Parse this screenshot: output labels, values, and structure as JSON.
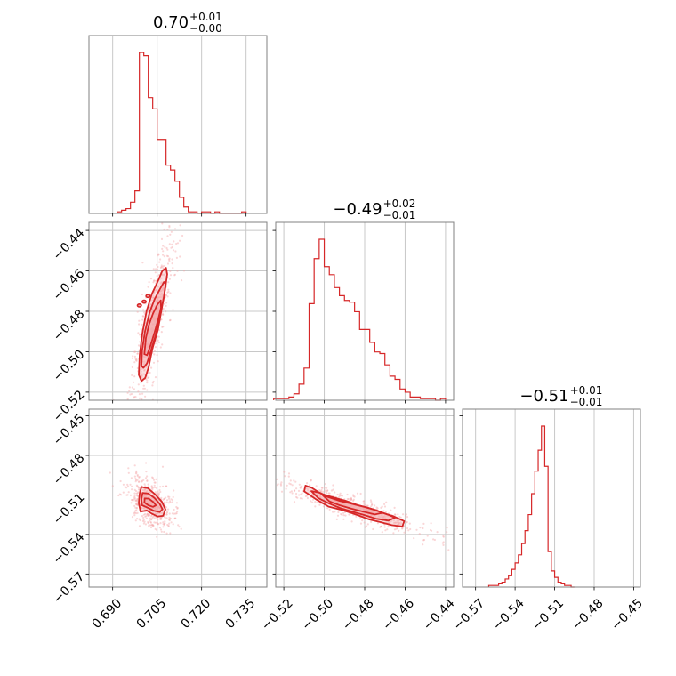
{
  "chart_data": {
    "type": "corner",
    "grid": true,
    "colors": {
      "line": "#d62728",
      "fill": "#f4a6a8",
      "frame": "#808080",
      "grid": "#c8c8c8"
    },
    "parameters": [
      {
        "title_main": "0.70",
        "title_plus": "+0.01",
        "title_minus": "−0.00",
        "range": [
          0.682,
          0.742
        ]
      },
      {
        "title_main": "−0.49",
        "title_plus": "+0.02",
        "title_minus": "−0.01",
        "range": [
          -0.524,
          -0.436
        ]
      },
      {
        "title_main": "−0.51",
        "title_plus": "+0.01",
        "title_minus": "−0.01",
        "range": [
          -0.5799,
          -0.4449
        ]
      }
    ],
    "x_ticks": [
      {
        "values": [
          0.69,
          0.705,
          0.72,
          0.735
        ],
        "labels": [
          "0.690",
          "0.705",
          "0.720",
          "0.735"
        ]
      },
      {
        "values": [
          -0.52,
          -0.5,
          -0.48,
          -0.46,
          -0.44
        ],
        "labels": [
          "−0.52",
          "−0.50",
          "−0.48",
          "−0.46",
          "−0.44"
        ]
      },
      {
        "values": [
          -0.57,
          -0.54,
          -0.51,
          -0.48,
          -0.45
        ],
        "labels": [
          "−0.57",
          "−0.54",
          "−0.51",
          "−0.48",
          "−0.45"
        ]
      }
    ],
    "y_ticks": [
      null,
      {
        "values": [
          -0.44,
          -0.46,
          -0.48,
          -0.5,
          -0.52
        ],
        "labels": [
          "−0.44",
          "−0.46",
          "−0.48",
          "−0.50",
          "−0.52"
        ]
      },
      {
        "values": [
          -0.45,
          -0.48,
          -0.51,
          -0.54,
          -0.57
        ],
        "labels": [
          "−0.45",
          "−0.48",
          "−0.51",
          "−0.54",
          "−0.57"
        ]
      }
    ],
    "histograms": [
      {
        "bin_width": 0.0015,
        "bins": [
          [
            0.6915,
            1
          ],
          [
            0.693,
            2
          ],
          [
            0.6945,
            3
          ],
          [
            0.696,
            7
          ],
          [
            0.6975,
            14
          ],
          [
            0.699,
            100
          ],
          [
            0.7005,
            98
          ],
          [
            0.702,
            72
          ],
          [
            0.7035,
            65
          ],
          [
            0.705,
            46
          ],
          [
            0.7065,
            46
          ],
          [
            0.708,
            30
          ],
          [
            0.7095,
            27
          ],
          [
            0.711,
            20
          ],
          [
            0.7125,
            10
          ],
          [
            0.714,
            4
          ],
          [
            0.7155,
            1
          ],
          [
            0.717,
            1
          ],
          [
            0.7185,
            0
          ],
          [
            0.72,
            1
          ],
          [
            0.7215,
            1
          ],
          [
            0.723,
            0
          ],
          [
            0.7245,
            1
          ],
          [
            0.726,
            0
          ],
          [
            0.7275,
            0
          ],
          [
            0.729,
            0
          ],
          [
            0.7305,
            0
          ],
          [
            0.732,
            0
          ],
          [
            0.7335,
            1
          ]
        ]
      },
      {
        "bin_width": 0.0025,
        "bins": [
          [
            -0.525,
            1
          ],
          [
            -0.5225,
            1
          ],
          [
            -0.52,
            1
          ],
          [
            -0.5175,
            2
          ],
          [
            -0.515,
            4
          ],
          [
            -0.5125,
            10
          ],
          [
            -0.51,
            20
          ],
          [
            -0.5075,
            60
          ],
          [
            -0.505,
            88
          ],
          [
            -0.5025,
            100
          ],
          [
            -0.5,
            83
          ],
          [
            -0.4975,
            78
          ],
          [
            -0.495,
            70
          ],
          [
            -0.4925,
            65
          ],
          [
            -0.49,
            62
          ],
          [
            -0.4875,
            61
          ],
          [
            -0.485,
            55
          ],
          [
            -0.4825,
            44
          ],
          [
            -0.48,
            44
          ],
          [
            -0.4775,
            36
          ],
          [
            -0.475,
            30
          ],
          [
            -0.4725,
            29
          ],
          [
            -0.47,
            22
          ],
          [
            -0.4675,
            15
          ],
          [
            -0.465,
            13
          ],
          [
            -0.4625,
            7
          ],
          [
            -0.46,
            5
          ],
          [
            -0.4575,
            2
          ],
          [
            -0.455,
            2
          ],
          [
            -0.4525,
            1
          ],
          [
            -0.45,
            1
          ],
          [
            -0.4475,
            1
          ],
          [
            -0.445,
            0
          ],
          [
            -0.4425,
            1
          ]
        ]
      },
      {
        "bin_width": 0.0025,
        "bins": [
          [
            -0.56,
            1
          ],
          [
            -0.5575,
            1
          ],
          [
            -0.555,
            1
          ],
          [
            -0.5525,
            2
          ],
          [
            -0.55,
            3
          ],
          [
            -0.5475,
            5
          ],
          [
            -0.545,
            7
          ],
          [
            -0.5425,
            11
          ],
          [
            -0.54,
            15
          ],
          [
            -0.5375,
            20
          ],
          [
            -0.535,
            27
          ],
          [
            -0.5325,
            35
          ],
          [
            -0.53,
            45
          ],
          [
            -0.5275,
            58
          ],
          [
            -0.525,
            72
          ],
          [
            -0.5225,
            85
          ],
          [
            -0.52,
            100
          ],
          [
            -0.5175,
            75
          ],
          [
            -0.515,
            22
          ],
          [
            -0.5125,
            10
          ],
          [
            -0.51,
            6
          ],
          [
            -0.5075,
            3
          ],
          [
            -0.505,
            2
          ],
          [
            -0.5025,
            1
          ],
          [
            -0.5,
            1
          ],
          [
            -0.4975,
            0
          ]
        ]
      }
    ],
    "contour_panels": [
      {
        "x_param": 0,
        "y_param": 1,
        "contours": [
          [
            [
              0.6988,
              -0.5114
            ],
            [
              0.6991,
              -0.5015
            ],
            [
              0.7,
              -0.491
            ],
            [
              0.7014,
              -0.48
            ],
            [
              0.7032,
              -0.4714
            ],
            [
              0.7054,
              -0.4646
            ],
            [
              0.7067,
              -0.4601
            ],
            [
              0.708,
              -0.4585
            ],
            [
              0.7084,
              -0.4616
            ],
            [
              0.7078,
              -0.4679
            ],
            [
              0.7067,
              -0.4775
            ],
            [
              0.7053,
              -0.4888
            ],
            [
              0.7034,
              -0.4986
            ],
            [
              0.7022,
              -0.5073
            ],
            [
              0.701,
              -0.5129
            ],
            [
              0.6997,
              -0.5145
            ]
          ],
          [
            [
              0.6997,
              -0.5071
            ],
            [
              0.6999,
              -0.4995
            ],
            [
              0.7009,
              -0.4899
            ],
            [
              0.7025,
              -0.4804
            ],
            [
              0.7041,
              -0.4741
            ],
            [
              0.7059,
              -0.4691
            ],
            [
              0.7073,
              -0.4655
            ],
            [
              0.7079,
              -0.4665
            ],
            [
              0.7073,
              -0.4729
            ],
            [
              0.706,
              -0.4816
            ],
            [
              0.7046,
              -0.4912
            ],
            [
              0.7029,
              -0.4994
            ],
            [
              0.7016,
              -0.5057
            ],
            [
              0.7004,
              -0.508
            ]
          ],
          [
            [
              0.7007,
              -0.5012
            ],
            [
              0.7012,
              -0.4932
            ],
            [
              0.7022,
              -0.4868
            ],
            [
              0.7036,
              -0.4811
            ],
            [
              0.7051,
              -0.4766
            ],
            [
              0.7062,
              -0.4746
            ],
            [
              0.7063,
              -0.4782
            ],
            [
              0.7054,
              -0.4838
            ],
            [
              0.7041,
              -0.4905
            ],
            [
              0.7028,
              -0.4968
            ],
            [
              0.7016,
              -0.5017
            ]
          ]
        ],
        "islands": [
          [
            0.699,
            -0.4771
          ],
          [
            0.7006,
            -0.4752
          ],
          [
            0.7019,
            -0.4724
          ]
        ]
      },
      {
        "x_param": 0,
        "y_param": 2,
        "contours": [
          [
            [
              0.6997,
              -0.5039
            ],
            [
              0.7019,
              -0.5049
            ],
            [
              0.7043,
              -0.5095
            ],
            [
              0.7066,
              -0.5152
            ],
            [
              0.7078,
              -0.521
            ],
            [
              0.707,
              -0.5258
            ],
            [
              0.7052,
              -0.5264
            ],
            [
              0.7031,
              -0.5241
            ],
            [
              0.7015,
              -0.5218
            ],
            [
              0.6994,
              -0.5227
            ],
            [
              0.6988,
              -0.5162
            ],
            [
              0.6991,
              -0.5089
            ]
          ],
          [
            [
              0.7001,
              -0.5085
            ],
            [
              0.702,
              -0.5089
            ],
            [
              0.7041,
              -0.5123
            ],
            [
              0.7058,
              -0.5166
            ],
            [
              0.7068,
              -0.5208
            ],
            [
              0.7059,
              -0.523
            ],
            [
              0.704,
              -0.5221
            ],
            [
              0.702,
              -0.5199
            ],
            [
              0.6999,
              -0.5178
            ],
            [
              0.6997,
              -0.5131
            ]
          ],
          [
            [
              0.7008,
              -0.5126
            ],
            [
              0.7022,
              -0.5128
            ],
            [
              0.7036,
              -0.5152
            ],
            [
              0.7046,
              -0.5179
            ],
            [
              0.7036,
              -0.519
            ],
            [
              0.702,
              -0.5178
            ],
            [
              0.7007,
              -0.5157
            ]
          ]
        ],
        "islands": []
      },
      {
        "x_param": 1,
        "y_param": 2,
        "contours": [
          [
            [
              -0.5093,
              -0.5029
            ],
            [
              -0.5059,
              -0.5048
            ],
            [
              -0.5012,
              -0.5094
            ],
            [
              -0.4953,
              -0.5119
            ],
            [
              -0.4894,
              -0.5144
            ],
            [
              -0.4835,
              -0.5177
            ],
            [
              -0.4776,
              -0.5201
            ],
            [
              -0.4717,
              -0.5235
            ],
            [
              -0.4657,
              -0.5262
            ],
            [
              -0.4604,
              -0.5299
            ],
            [
              -0.4614,
              -0.534
            ],
            [
              -0.4666,
              -0.5329
            ],
            [
              -0.4722,
              -0.5306
            ],
            [
              -0.4776,
              -0.5287
            ],
            [
              -0.4823,
              -0.526
            ],
            [
              -0.487,
              -0.5235
            ],
            [
              -0.4923,
              -0.521
            ],
            [
              -0.4978,
              -0.5189
            ],
            [
              -0.5041,
              -0.5133
            ],
            [
              -0.5099,
              -0.5073
            ]
          ],
          [
            [
              -0.5064,
              -0.5071
            ],
            [
              -0.5028,
              -0.5081
            ],
            [
              -0.4976,
              -0.5112
            ],
            [
              -0.4917,
              -0.5143
            ],
            [
              -0.4858,
              -0.517
            ],
            [
              -0.4798,
              -0.5193
            ],
            [
              -0.4739,
              -0.5219
            ],
            [
              -0.468,
              -0.5252
            ],
            [
              -0.465,
              -0.5273
            ],
            [
              -0.4683,
              -0.5295
            ],
            [
              -0.4742,
              -0.5281
            ],
            [
              -0.4801,
              -0.5253
            ],
            [
              -0.486,
              -0.5228
            ],
            [
              -0.4919,
              -0.5201
            ],
            [
              -0.4976,
              -0.5165
            ],
            [
              -0.5029,
              -0.5125
            ]
          ],
          [
            [
              -0.5007,
              -0.5104
            ],
            [
              -0.497,
              -0.5121
            ],
            [
              -0.492,
              -0.5147
            ],
            [
              -0.4862,
              -0.5167
            ],
            [
              -0.4803,
              -0.519
            ],
            [
              -0.4744,
              -0.5215
            ],
            [
              -0.4712,
              -0.5236
            ],
            [
              -0.475,
              -0.5248
            ],
            [
              -0.4805,
              -0.5228
            ],
            [
              -0.4865,
              -0.5204
            ],
            [
              -0.4924,
              -0.5178
            ],
            [
              -0.4975,
              -0.5148
            ]
          ]
        ],
        "islands": []
      }
    ]
  }
}
